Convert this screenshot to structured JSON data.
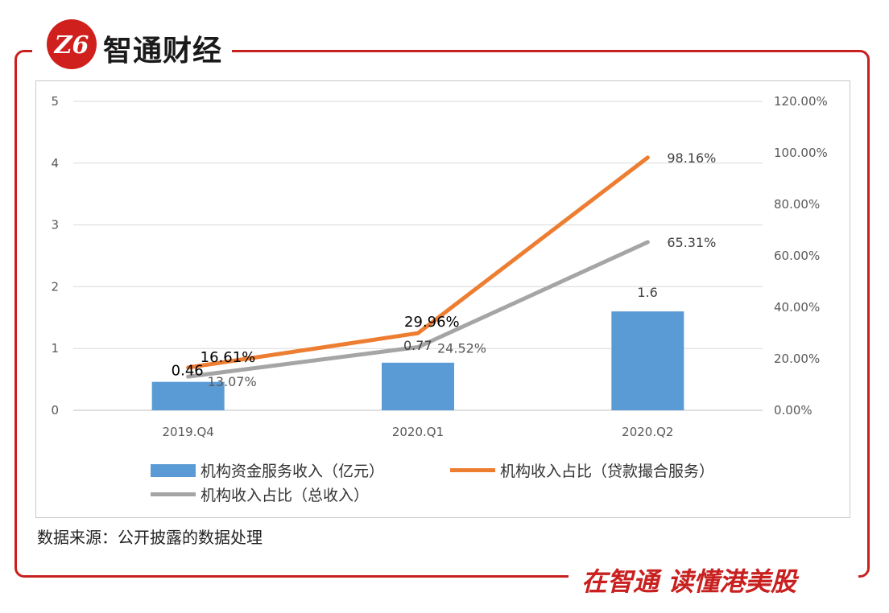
{
  "brand": {
    "name": "智通财经",
    "logo_glyph": "Z6",
    "slogan": "在智通 读懂港美股",
    "accent": "#c8201f"
  },
  "source": "数据来源：公开披露的数据处理",
  "chart_data": {
    "type": "bar",
    "categories": [
      "2019.Q4",
      "2020.Q1",
      "2020.Q2"
    ],
    "series": [
      {
        "name": "机构资金服务收入（亿元）",
        "kind": "bar",
        "axis": "left",
        "values": [
          0.46,
          0.77,
          1.6
        ],
        "labels": [
          "0.46",
          "0.77",
          "1.6"
        ],
        "color": "#5b9bd5"
      },
      {
        "name": "机构收入占比（贷款撮合服务）",
        "kind": "line",
        "axis": "right",
        "values": [
          16.61,
          29.96,
          98.16
        ],
        "labels": [
          "16.61%",
          "29.96%",
          "98.16%"
        ],
        "color": "#ed7d31"
      },
      {
        "name": "机构收入占比（总收入）",
        "kind": "line",
        "axis": "right",
        "values": [
          13.07,
          24.52,
          65.31
        ],
        "labels": [
          "13.07%",
          "24.52%",
          "65.31%"
        ],
        "color": "#a5a5a5"
      }
    ],
    "y_left": {
      "ylim": [
        0,
        5
      ],
      "ticks": [
        "0",
        "1",
        "2",
        "3",
        "4",
        "5"
      ]
    },
    "y_right": {
      "ylim": [
        0,
        120
      ],
      "ticks": [
        "0.00%",
        "20.00%",
        "40.00%",
        "60.00%",
        "80.00%",
        "100.00%",
        "120.00%"
      ]
    },
    "grid": true,
    "legend_position": "bottom"
  }
}
